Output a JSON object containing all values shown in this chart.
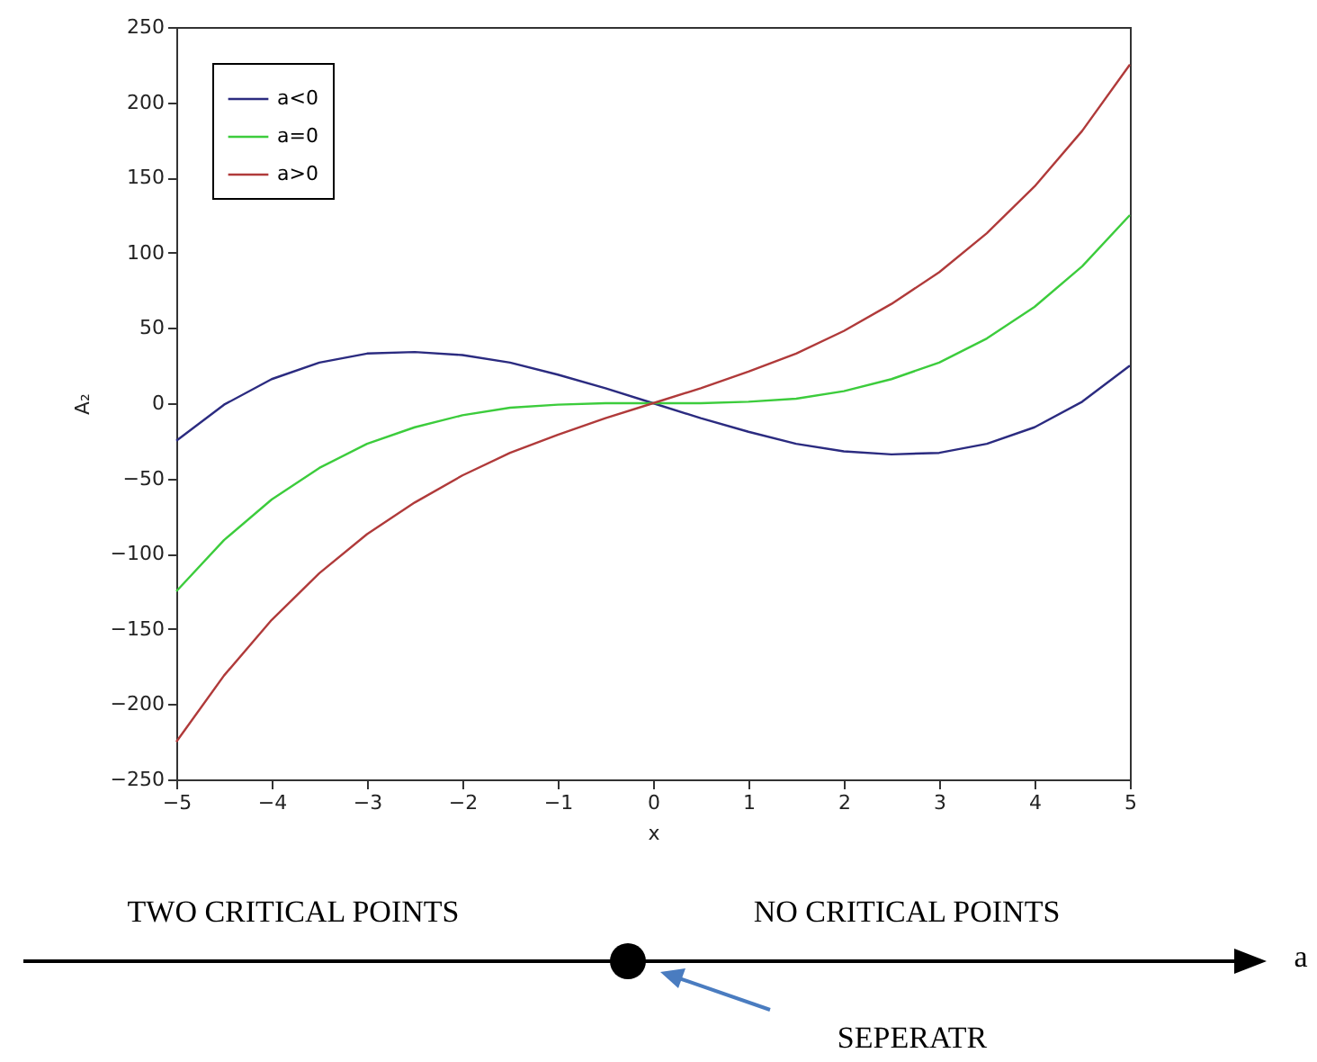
{
  "chart_data": {
    "type": "line",
    "xlabel": "x",
    "ylabel": "A₂",
    "x": [
      -5,
      -4.5,
      -4,
      -3.5,
      -3,
      -2.5,
      -2,
      -1.5,
      -1,
      -0.5,
      0,
      0.5,
      1,
      1.5,
      2,
      2.5,
      3,
      3.5,
      4,
      4.5,
      5
    ],
    "series": [
      {
        "name": "a<0",
        "color": "#2b2b80",
        "values": [
          -25,
          -1,
          16,
          27,
          33,
          34,
          32,
          27,
          19,
          10,
          0,
          -10,
          -19,
          -27,
          -32,
          -34,
          -33,
          -27,
          -16,
          1,
          25
        ]
      },
      {
        "name": "a=0",
        "color": "#3ccc3c",
        "values": [
          -125,
          -91,
          -64,
          -43,
          -27,
          -16,
          -8,
          -3,
          -1,
          0,
          0,
          0,
          1,
          3,
          8,
          16,
          27,
          43,
          64,
          91,
          125
        ]
      },
      {
        "name": "a>0",
        "color": "#b03a3a",
        "values": [
          -225,
          -181,
          -144,
          -113,
          -87,
          -66,
          -48,
          -33,
          -21,
          -10,
          0,
          10,
          21,
          33,
          48,
          66,
          87,
          113,
          144,
          181,
          225
        ]
      }
    ],
    "xlim": [
      -5,
      5
    ],
    "xticks": [
      -5,
      -4,
      -3,
      -2,
      -1,
      0,
      1,
      2,
      3,
      4,
      5
    ],
    "ylim": [
      -250,
      250
    ],
    "yticks": [
      -250,
      -200,
      -150,
      -100,
      -50,
      0,
      50,
      100,
      150,
      200,
      250
    ],
    "grid": false,
    "legend": "top left",
    "marker": "none",
    "line_style": "solid",
    "annotations": [
      "TWO CRITICAL POINTS",
      "NO CRITICAL POINTS",
      "a",
      "SEPERATR"
    ]
  }
}
